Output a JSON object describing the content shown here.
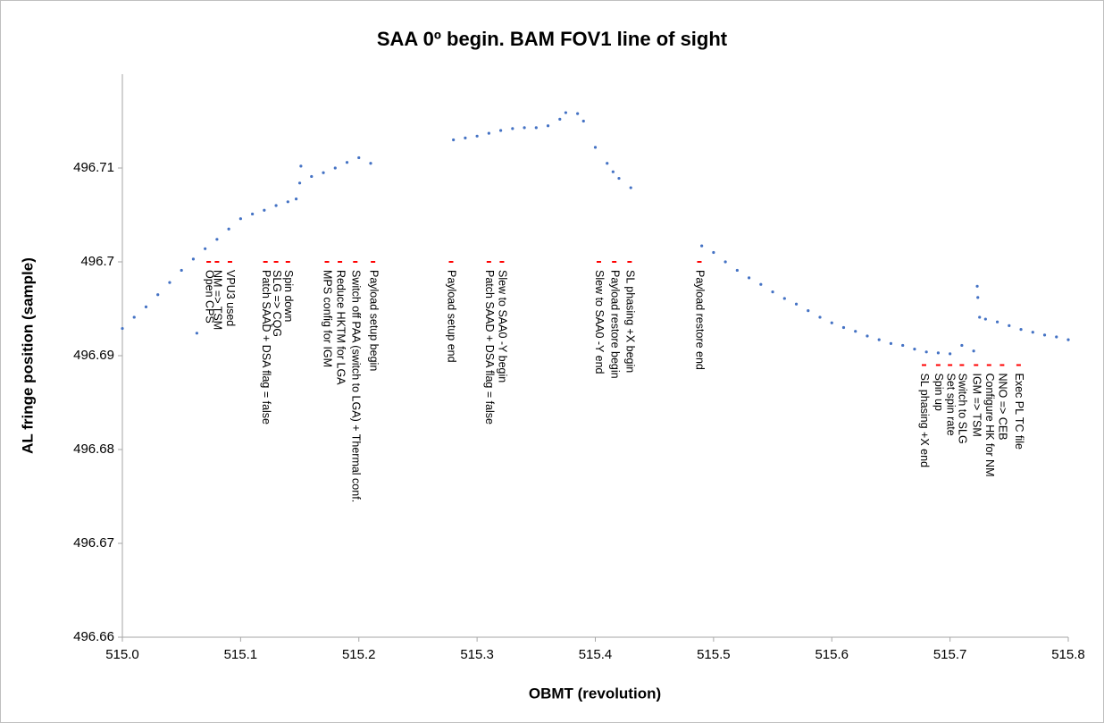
{
  "chart_data": {
    "type": "scatter",
    "title": "SAA 0º begin. BAM FOV1 line of sight",
    "x_label": "OBMT (revolution)",
    "y_label": "AL fringe position (sample)",
    "xlim": [
      515,
      515.8
    ],
    "ylim": [
      496.66,
      496.72
    ],
    "xticks": [
      {
        "value": 515,
        "label": "515.0"
      },
      515.1,
      515.2,
      515.3,
      515.4,
      515.5,
      515.6,
      515.7,
      515.8
    ],
    "yticks": [
      496.66,
      496.67,
      496.68,
      496.69,
      496.7,
      496.71
    ],
    "series": [
      {
        "color": "#4472c4",
        "x": [
          515.0,
          515.01,
          515.02,
          515.03,
          515.04,
          515.05,
          515.06,
          515.063,
          515.07,
          515.08,
          515.09,
          515.1,
          515.11,
          515.12,
          515.13,
          515.14,
          515.147,
          515.15,
          515.151,
          515.16,
          515.17,
          515.18,
          515.19,
          515.2,
          515.21,
          515.28,
          515.29,
          515.3,
          515.31,
          515.32,
          515.33,
          515.34,
          515.35,
          515.36,
          515.37,
          515.375,
          515.385,
          515.39,
          515.4,
          515.41,
          515.415,
          515.42,
          515.43,
          515.49,
          515.5,
          515.51,
          515.52,
          515.53,
          515.54,
          515.55,
          515.56,
          515.57,
          515.58,
          515.59,
          515.6,
          515.61,
          515.62,
          515.63,
          515.64,
          515.65,
          515.66,
          515.67,
          515.68,
          515.69,
          515.7,
          515.71,
          515.72,
          515.723,
          515.7235,
          515.725,
          515.73,
          515.74,
          515.75,
          515.76,
          515.77,
          515.78,
          515.79,
          515.8
        ],
        "values": [
          496.6929,
          496.6941,
          496.6952,
          496.6965,
          496.6978,
          496.6991,
          496.7003,
          496.6924,
          496.7014,
          496.7024,
          496.7035,
          496.7046,
          496.7051,
          496.7055,
          496.706,
          496.7064,
          496.7067,
          496.7084,
          496.7102,
          496.7091,
          496.7095,
          496.71,
          496.7106,
          496.7111,
          496.7105,
          496.713,
          496.7132,
          496.7134,
          496.7137,
          496.714,
          496.7142,
          496.7143,
          496.7143,
          496.7145,
          496.7152,
          496.7159,
          496.7158,
          496.715,
          496.7122,
          496.7105,
          496.7096,
          496.7089,
          496.7079,
          496.7017,
          496.701,
          496.7,
          496.6991,
          496.6983,
          496.6976,
          496.6968,
          496.6961,
          496.6955,
          496.6948,
          496.6941,
          496.6935,
          496.693,
          496.6926,
          496.6921,
          496.6917,
          496.6913,
          496.6911,
          496.6907,
          496.6904,
          496.6903,
          496.6902,
          496.6911,
          496.6905,
          496.6974,
          496.6962,
          496.6941,
          496.6939,
          496.6936,
          496.6932,
          496.6928,
          496.6925,
          496.6922,
          496.692,
          496.6917
        ]
      }
    ],
    "events": {
      "color": "#ff0000",
      "x": [
        515.073,
        515.08,
        515.091,
        515.121,
        515.13,
        515.14,
        515.173,
        515.184,
        515.197,
        515.212,
        515.278,
        515.31,
        515.321,
        515.403,
        515.416,
        515.429,
        515.488,
        515.678,
        515.69,
        515.7,
        515.71,
        515.722,
        515.733,
        515.744,
        515.758
      ],
      "y": [
        496.7,
        496.7,
        496.7,
        496.7,
        496.7,
        496.7,
        496.7,
        496.7,
        496.7,
        496.7,
        496.7,
        496.7,
        496.7,
        496.7,
        496.7,
        496.7,
        496.7,
        496.689,
        496.689,
        496.689,
        496.689,
        496.689,
        496.689,
        496.689,
        496.689
      ],
      "labels": [
        "Open CPS",
        "NM => TSM",
        "VPU3 used",
        "Patch SAAD + DSA flag = false",
        "SLG => CQG",
        "Spin down",
        "MPS config for IGM",
        "Reduce HKTM for LGA",
        "Switch off PAA (switch to LGA) + Thermal conf.",
        "Payload setup begin",
        "Payload setup end",
        "Patch SAAD + DSA flag = false",
        "Slew to SAA0 -Y begin",
        "Slew to SAA0 -Y end",
        "Payload restore begin",
        "SL phasing +X begin",
        "Payload restore end",
        "SL phasing +X end",
        "Spin up",
        "Set spin rate",
        "Switch to SLG",
        "IGM => TSM",
        "Configure HK for NM",
        "NNO => CEB",
        "Exec PL TC file"
      ]
    }
  }
}
